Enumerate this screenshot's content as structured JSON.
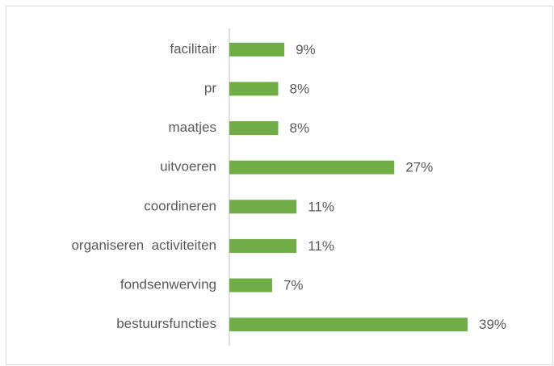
{
  "chart_data": {
    "type": "bar",
    "orientation": "horizontal",
    "categories": [
      "facilitair",
      "pr",
      "maatjes",
      "uitvoeren",
      "coordineren",
      "organiseren  activiteiten",
      "fondsenwerving",
      "bestuursfuncties"
    ],
    "values": [
      9,
      8,
      8,
      27,
      11,
      11,
      7,
      39
    ],
    "value_labels": [
      "9%",
      "8%",
      "8%",
      "27%",
      "11%",
      "11%",
      "7%",
      "39%"
    ],
    "color": "#70ad47"
  }
}
